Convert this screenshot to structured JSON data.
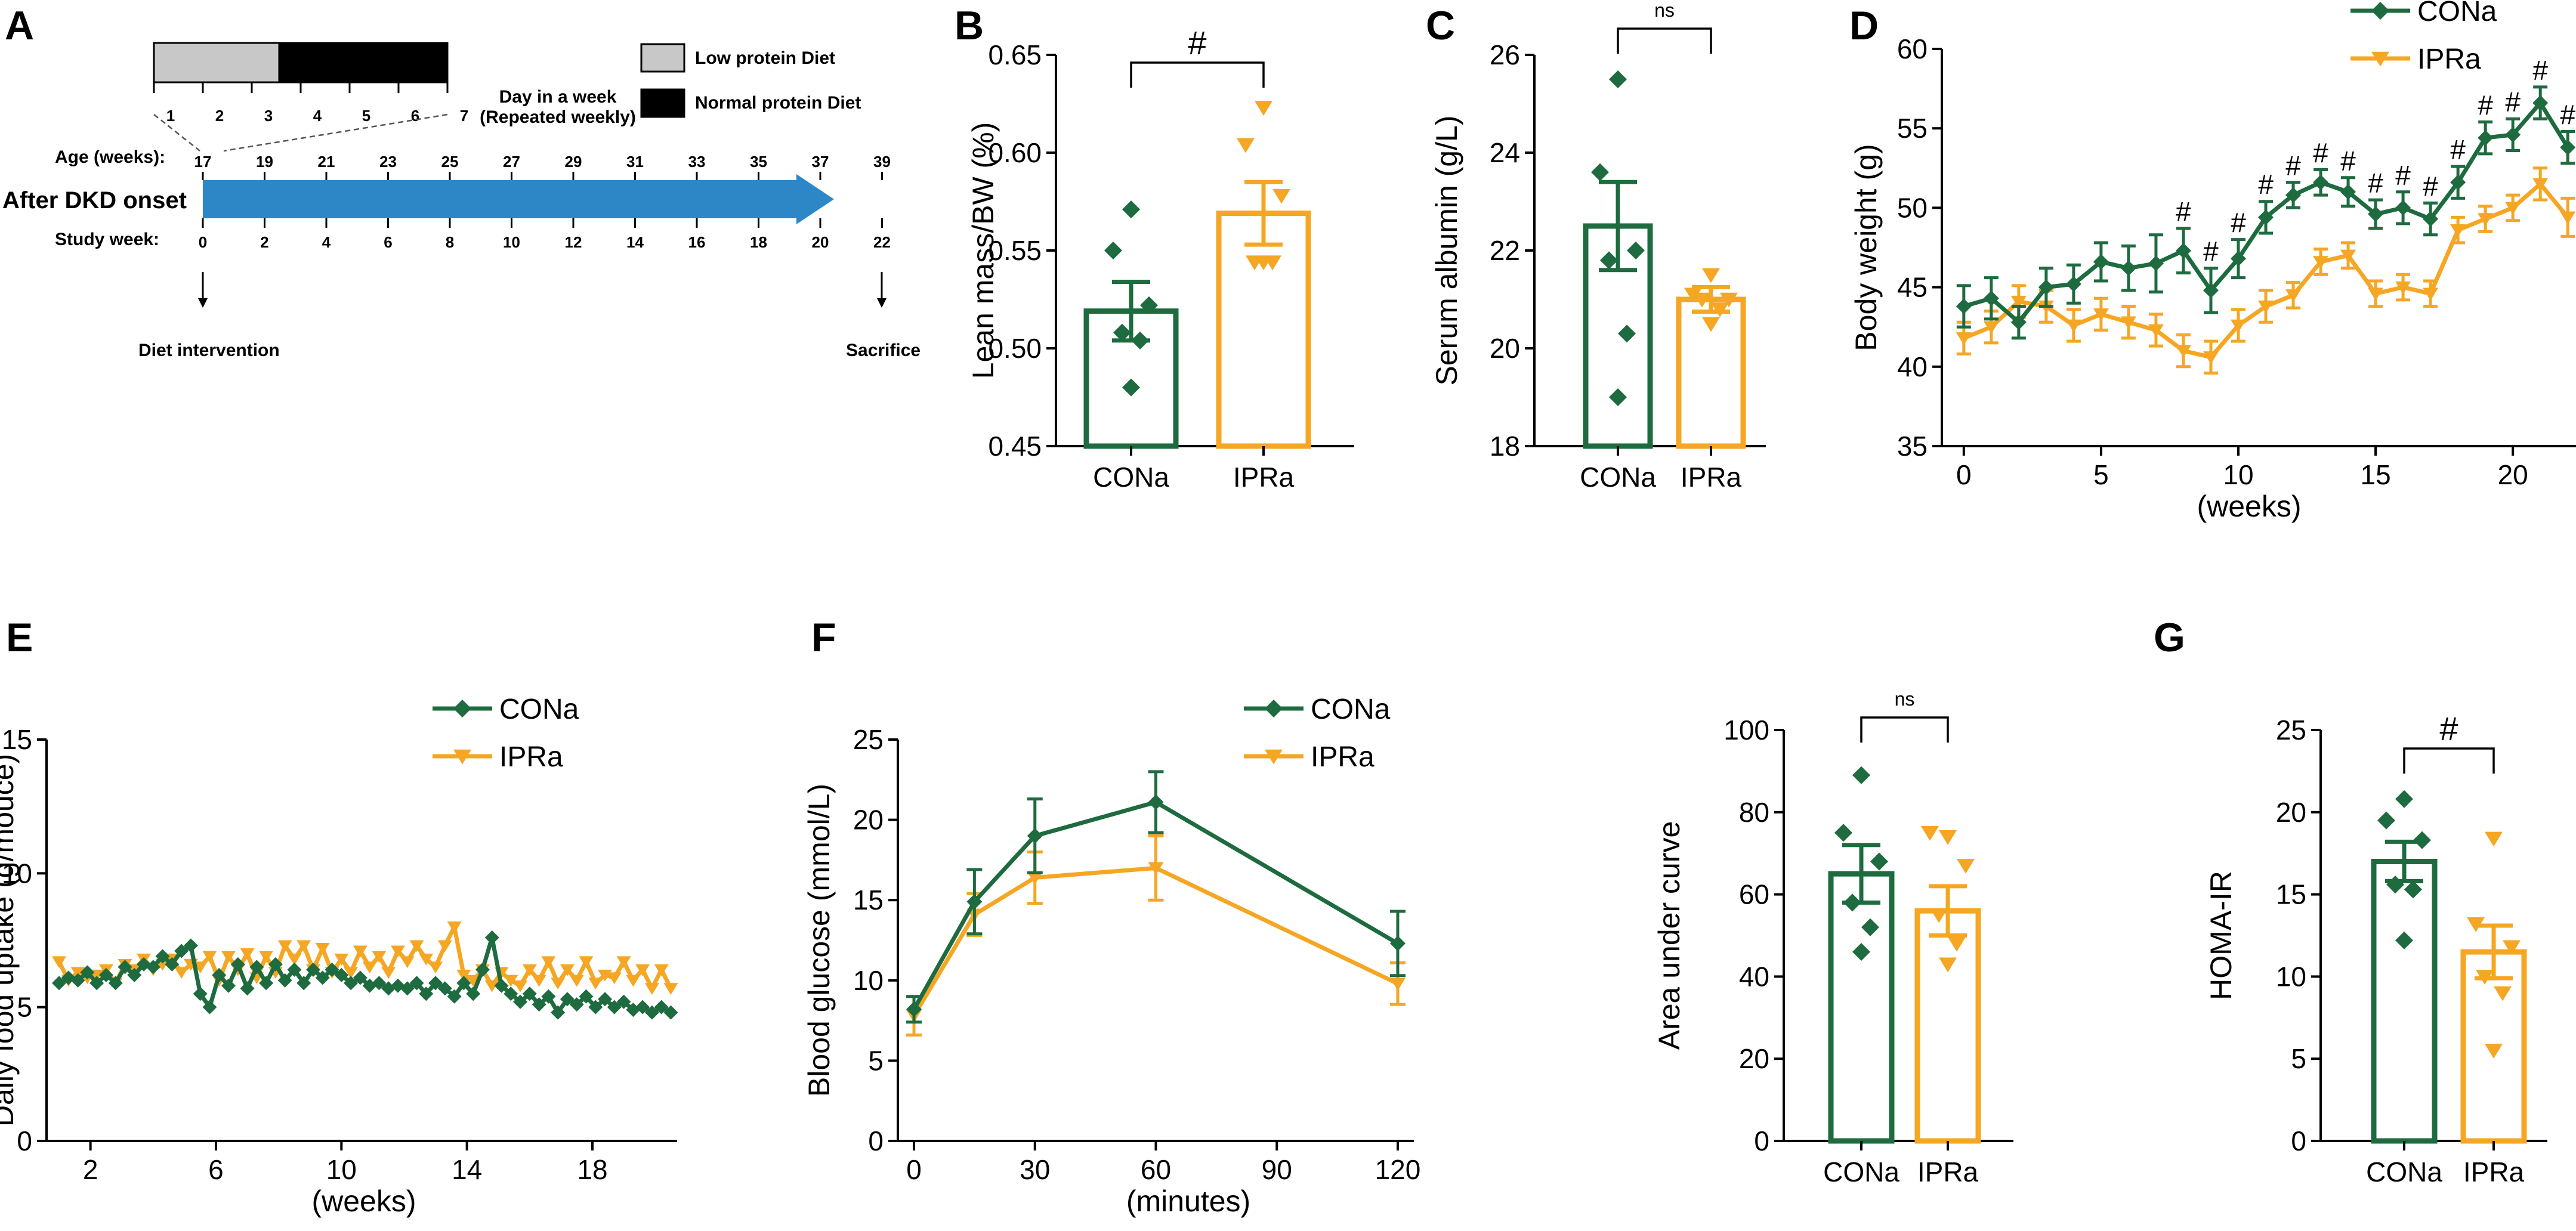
{
  "colors": {
    "cona": "#1d6b3f",
    "ipra": "#f5a623",
    "arrow": "#2d87c6",
    "low": "#c8c8c8",
    "normal": "#000000"
  },
  "panels": {
    "A": {
      "letter": "A",
      "legend": {
        "low": "Low protein Diet",
        "normal": "Normal protein Diet"
      },
      "day_label_1": "Day in a week",
      "day_label_2": "(Repeated weekly)",
      "days": [
        "1",
        "2",
        "3",
        "4",
        "5",
        "6",
        "7"
      ],
      "age_label": "Age (weeks):",
      "ages": [
        "17",
        "19",
        "21",
        "23",
        "25",
        "27",
        "29",
        "31",
        "33",
        "35",
        "37",
        "39"
      ],
      "onset_label": "After DKD onset",
      "study_label": "Study week:",
      "study_weeks": [
        "0",
        "2",
        "4",
        "6",
        "8",
        "10",
        "12",
        "14",
        "16",
        "18",
        "20",
        "22"
      ],
      "diet_intervention": "Diet intervention",
      "sacrifice": "Sacrifice"
    },
    "B": {
      "letter": "B"
    },
    "C": {
      "letter": "C"
    },
    "D": {
      "letter": "D"
    },
    "E": {
      "letter": "E"
    },
    "F": {
      "letter": "F"
    },
    "G": {
      "letter": "G"
    }
  },
  "chart_data": [
    {
      "id": "B",
      "type": "bar",
      "ylabel": "Lean mass/BW (%)",
      "ylim": [
        0.45,
        0.65
      ],
      "yticks": [
        "0.45",
        "0.50",
        "0.55",
        "0.60",
        "0.65"
      ],
      "ytick_values": [
        0.45,
        0.5,
        0.55,
        0.6,
        0.65
      ],
      "categories": [
        "CONa",
        "IPRa"
      ],
      "means": [
        0.519,
        0.569
      ],
      "sem": [
        0.015,
        0.016
      ],
      "points": [
        [
          0.571,
          0.55,
          0.522,
          0.508,
          0.504,
          0.48
        ],
        [
          0.623,
          0.604,
          0.578,
          0.544,
          0.544,
          0.544
        ]
      ],
      "significance": "#"
    },
    {
      "id": "C",
      "type": "bar",
      "ylabel": "Serum albumin (g/L)",
      "ylim": [
        18,
        26
      ],
      "yticks": [
        "18",
        "20",
        "22",
        "24",
        "26"
      ],
      "ytick_values": [
        18,
        20,
        22,
        24,
        26
      ],
      "categories": [
        "CONa",
        "IPRa"
      ],
      "means": [
        22.5,
        21.0
      ],
      "sem": [
        0.9,
        0.25
      ],
      "points": [
        [
          25.5,
          23.6,
          22.0,
          21.8,
          20.3,
          19.0
        ],
        [
          21.5,
          21.1,
          21.0,
          21.0,
          20.8,
          20.5
        ]
      ],
      "significance": "ns"
    },
    {
      "id": "D",
      "type": "line",
      "ylabel": "Body weight (g)",
      "xlabel": "(weeks)",
      "ylim": [
        35,
        60
      ],
      "xlim": [
        -0.8,
        22.3
      ],
      "yticks": [
        "35",
        "40",
        "45",
        "50",
        "55",
        "60"
      ],
      "ytick_values": [
        35,
        40,
        45,
        50,
        55,
        60
      ],
      "xticks": [
        "0",
        "5",
        "10",
        "15",
        "20"
      ],
      "xtick_values": [
        0,
        5,
        10,
        15,
        20
      ],
      "x": [
        0,
        1,
        2,
        3,
        4,
        5,
        6,
        7,
        8,
        9,
        10,
        11,
        12,
        13,
        14,
        15,
        16,
        17,
        18,
        19,
        20,
        21,
        22
      ],
      "series": [
        {
          "name": "CONa",
          "values": [
            43.8,
            44.3,
            42.8,
            45.0,
            45.2,
            46.6,
            46.2,
            46.5,
            47.3,
            44.8,
            46.8,
            49.4,
            50.8,
            51.6,
            51.0,
            49.6,
            50.0,
            49.3,
            51.6,
            54.4,
            54.6,
            56.6,
            53.8
          ],
          "err": [
            1.3,
            1.3,
            1.0,
            1.2,
            1.2,
            1.2,
            1.4,
            1.8,
            1.4,
            1.4,
            1.2,
            1.0,
            0.8,
            0.8,
            0.9,
            0.9,
            1.0,
            1.0,
            1.0,
            1.0,
            1.0,
            1.0,
            1.0
          ]
        },
        {
          "name": "IPRa",
          "values": [
            41.8,
            42.5,
            44.1,
            43.8,
            42.6,
            43.3,
            42.8,
            42.3,
            41.0,
            40.6,
            42.6,
            43.8,
            44.5,
            46.6,
            47.0,
            44.6,
            45.0,
            44.6,
            48.6,
            49.3,
            50.0,
            51.5,
            49.4
          ],
          "err": [
            1.0,
            1.0,
            1.0,
            1.0,
            1.0,
            1.0,
            1.0,
            1.0,
            1.0,
            1.0,
            1.0,
            1.0,
            0.8,
            0.8,
            0.8,
            0.8,
            0.8,
            0.8,
            0.8,
            0.8,
            0.8,
            1.0,
            1.2
          ]
        }
      ],
      "significance": {
        "symbol": "#",
        "x": [
          8,
          9,
          10,
          11,
          12,
          13,
          14,
          15,
          16,
          17,
          18,
          19,
          20,
          21,
          22
        ]
      }
    },
    {
      "id": "E",
      "type": "line",
      "ylabel": "Daily food uptake (g/mouce)",
      "xlabel": "(weeks)",
      "ylim": [
        0,
        15
      ],
      "xlim": [
        0.6,
        20.7
      ],
      "yticks": [
        "0",
        "5",
        "10",
        "15"
      ],
      "ytick_values": [
        0,
        5,
        10,
        15
      ],
      "xticks": [
        "2",
        "6",
        "10",
        "14",
        "18"
      ],
      "xtick_values": [
        2,
        6,
        10,
        14,
        18
      ],
      "x": [
        1.0,
        1.3,
        1.6,
        1.9,
        2.2,
        2.5,
        2.8,
        3.1,
        3.4,
        3.7,
        4.0,
        4.3,
        4.6,
        4.9,
        5.2,
        5.5,
        5.8,
        6.1,
        6.4,
        6.7,
        7.0,
        7.3,
        7.6,
        7.9,
        8.2,
        8.5,
        8.8,
        9.1,
        9.4,
        9.7,
        10.0,
        10.3,
        10.6,
        10.9,
        11.2,
        11.5,
        11.8,
        12.1,
        12.4,
        12.7,
        13.0,
        13.3,
        13.6,
        13.9,
        14.2,
        14.5,
        14.8,
        15.1,
        15.4,
        15.7,
        16.0,
        16.3,
        16.6,
        16.9,
        17.2,
        17.5,
        17.8,
        18.1,
        18.4,
        18.7,
        19.0,
        19.3,
        19.6,
        19.9,
        20.2,
        20.5
      ],
      "series": [
        {
          "name": "CONa",
          "values": [
            5.9,
            6.1,
            6.0,
            6.3,
            5.9,
            6.2,
            5.9,
            6.5,
            6.2,
            6.6,
            6.5,
            6.9,
            6.6,
            7.1,
            7.3,
            5.5,
            5.0,
            6.2,
            5.8,
            6.6,
            5.7,
            6.5,
            5.9,
            6.6,
            6.0,
            6.4,
            5.9,
            6.4,
            6.1,
            6.4,
            6.2,
            5.9,
            6.1,
            5.8,
            5.9,
            5.7,
            5.8,
            5.7,
            5.9,
            5.5,
            5.9,
            5.7,
            5.4,
            5.9,
            5.5,
            6.4,
            7.6,
            5.8,
            5.5,
            5.2,
            5.5,
            5.1,
            5.4,
            4.8,
            5.3,
            5.1,
            5.4,
            5.0,
            5.3,
            5.0,
            5.2,
            4.9,
            5.0,
            4.8,
            5.0,
            4.8
          ]
        },
        {
          "name": "IPRa",
          "values": [
            6.7,
            6.0,
            6.3,
            6.1,
            6.2,
            6.4,
            5.9,
            6.6,
            6.4,
            6.8,
            6.4,
            6.6,
            6.8,
            6.3,
            6.6,
            6.5,
            6.9,
            6.0,
            6.9,
            6.4,
            7.0,
            6.1,
            6.9,
            6.3,
            7.3,
            6.8,
            7.3,
            6.4,
            7.2,
            6.3,
            6.8,
            6.3,
            7.1,
            6.5,
            6.9,
            6.3,
            7.1,
            6.7,
            7.3,
            6.8,
            6.5,
            7.3,
            8.0,
            6.2,
            6.0,
            6.4,
            5.8,
            6.3,
            6.0,
            5.8,
            6.4,
            6.0,
            6.7,
            5.9,
            6.4,
            6.0,
            6.7,
            5.9,
            6.2,
            6.1,
            6.7,
            6.0,
            6.4,
            5.7,
            6.4,
            5.7
          ]
        }
      ]
    },
    {
      "id": "F1",
      "type": "line",
      "ylabel": "Blood glucose (mmol/L)",
      "xlabel": "(minutes)",
      "ylim": [
        0,
        25
      ],
      "xlim": [
        -4,
        124
      ],
      "yticks": [
        "0",
        "5",
        "10",
        "15",
        "20",
        "25"
      ],
      "ytick_values": [
        0,
        5,
        10,
        15,
        20,
        25
      ],
      "xticks": [
        "0",
        "30",
        "60",
        "90",
        "120"
      ],
      "xtick_values": [
        0,
        30,
        60,
        90,
        120
      ],
      "x": [
        0,
        15,
        30,
        60,
        120
      ],
      "series": [
        {
          "name": "CONa",
          "values": [
            8.2,
            14.9,
            19.0,
            21.1,
            12.3
          ],
          "err": [
            0.8,
            2.0,
            2.3,
            1.9,
            2.0
          ]
        },
        {
          "name": "IPRa",
          "values": [
            7.8,
            14.1,
            16.4,
            17.0,
            9.8
          ],
          "err": [
            1.2,
            1.3,
            1.6,
            2.0,
            1.3
          ]
        }
      ]
    },
    {
      "id": "F2",
      "type": "bar",
      "ylabel": "Area under curve",
      "ylim": [
        0,
        100
      ],
      "yticks": [
        "0",
        "20",
        "40",
        "60",
        "80",
        "100"
      ],
      "ytick_values": [
        0,
        20,
        40,
        60,
        80,
        100
      ],
      "categories": [
        "CONa",
        "IPRa"
      ],
      "means": [
        65.0,
        56.0
      ],
      "sem": [
        7.0,
        6.0
      ],
      "points": [
        [
          89,
          75,
          68,
          58,
          52,
          46
        ],
        [
          74,
          75,
          67,
          55,
          48,
          43
        ]
      ],
      "significance": "ns"
    },
    {
      "id": "G",
      "type": "bar",
      "ylabel": "HOMA-IR",
      "ylim": [
        0,
        25
      ],
      "yticks": [
        "0",
        "5",
        "10",
        "15",
        "20",
        "25"
      ],
      "ytick_values": [
        0,
        5,
        10,
        15,
        20,
        25
      ],
      "categories": [
        "CONa",
        "IPRa"
      ],
      "means": [
        17.0,
        11.5
      ],
      "sem": [
        1.2,
        1.6
      ],
      "points": [
        [
          20.8,
          19.5,
          18.3,
          15.6,
          15.3,
          12.2
        ],
        [
          18.4,
          13.2,
          11.8,
          10.0,
          9.0,
          5.5
        ]
      ],
      "significance": "#"
    }
  ]
}
